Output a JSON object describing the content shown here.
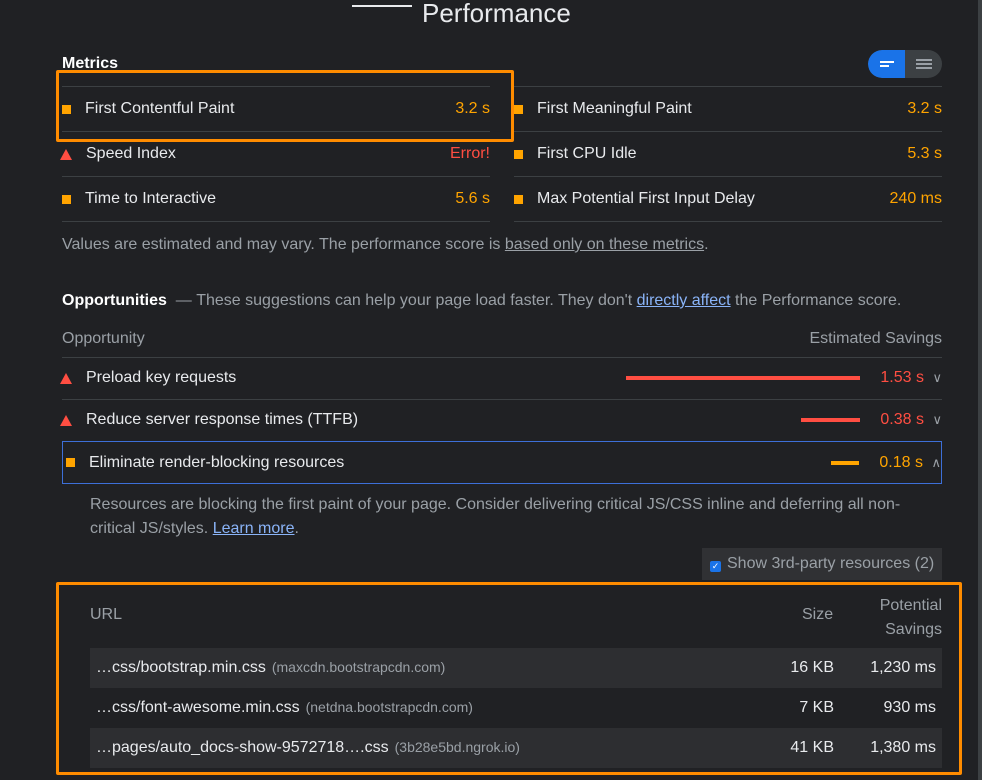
{
  "page": {
    "title": "Performance"
  },
  "metrics": {
    "title": "Metrics",
    "left": [
      {
        "label": "First Contentful Paint",
        "value": "3.2 s",
        "status": "average"
      },
      {
        "label": "Speed Index",
        "value": "Error!",
        "status": "fail"
      },
      {
        "label": "Time to Interactive",
        "value": "5.6 s",
        "status": "average"
      }
    ],
    "right": [
      {
        "label": "First Meaningful Paint",
        "value": "3.2 s",
        "status": "average"
      },
      {
        "label": "First CPU Idle",
        "value": "5.3 s",
        "status": "average"
      },
      {
        "label": "Max Potential First Input Delay",
        "value": "240 ms",
        "status": "average"
      }
    ],
    "note_prefix": "Values are estimated and may vary. The performance score is ",
    "note_link": "based only on these metrics",
    "note_suffix": "."
  },
  "opportunities": {
    "title": "Opportunities",
    "desc_prefix": "These suggestions can help your page load faster. They don't ",
    "desc_link": "directly affect",
    "desc_suffix": " the Performance score.",
    "col_opportunity": "Opportunity",
    "col_savings": "Estimated Savings",
    "items": [
      {
        "label": "Preload key requests",
        "value": "1.53 s",
        "status": "fail",
        "fraction": 1.0
      },
      {
        "label": "Reduce server response times (TTFB)",
        "value": "0.38 s",
        "status": "fail",
        "fraction": 0.25
      },
      {
        "label": "Eliminate render-blocking resources",
        "value": "0.18 s",
        "status": "average",
        "fraction": 0.12
      }
    ],
    "expanded": {
      "description": "Resources are blocking the first paint of your page. Consider delivering critical JS/CSS inline and deferring all non-critical JS/styles. ",
      "learn_more": "Learn more",
      "period": ".",
      "third_party_label": "Show 3rd-party resources (2)",
      "table": {
        "col_url": "URL",
        "col_size": "Size",
        "col_savings_1": "Potential",
        "col_savings_2": "Savings",
        "rows": [
          {
            "url": "…css/bootstrap.min.css",
            "host": "(maxcdn.bootstrapcdn.com)",
            "size": "16 KB",
            "savings": "1,230 ms"
          },
          {
            "url": "…css/font-awesome.min.css",
            "host": "(netdna.bootstrapcdn.com)",
            "size": "7 KB",
            "savings": "930 ms"
          },
          {
            "url": "…pages/auto_docs-show-9572718….css",
            "host": "(3b28e5bd.ngrok.io)",
            "size": "41 KB",
            "savings": "1,380 ms"
          }
        ]
      }
    }
  },
  "colors": {
    "average": "#ffa400",
    "fail": "#ff4e42",
    "accent": "#1a73e8",
    "highlight": "#ff8c00"
  }
}
